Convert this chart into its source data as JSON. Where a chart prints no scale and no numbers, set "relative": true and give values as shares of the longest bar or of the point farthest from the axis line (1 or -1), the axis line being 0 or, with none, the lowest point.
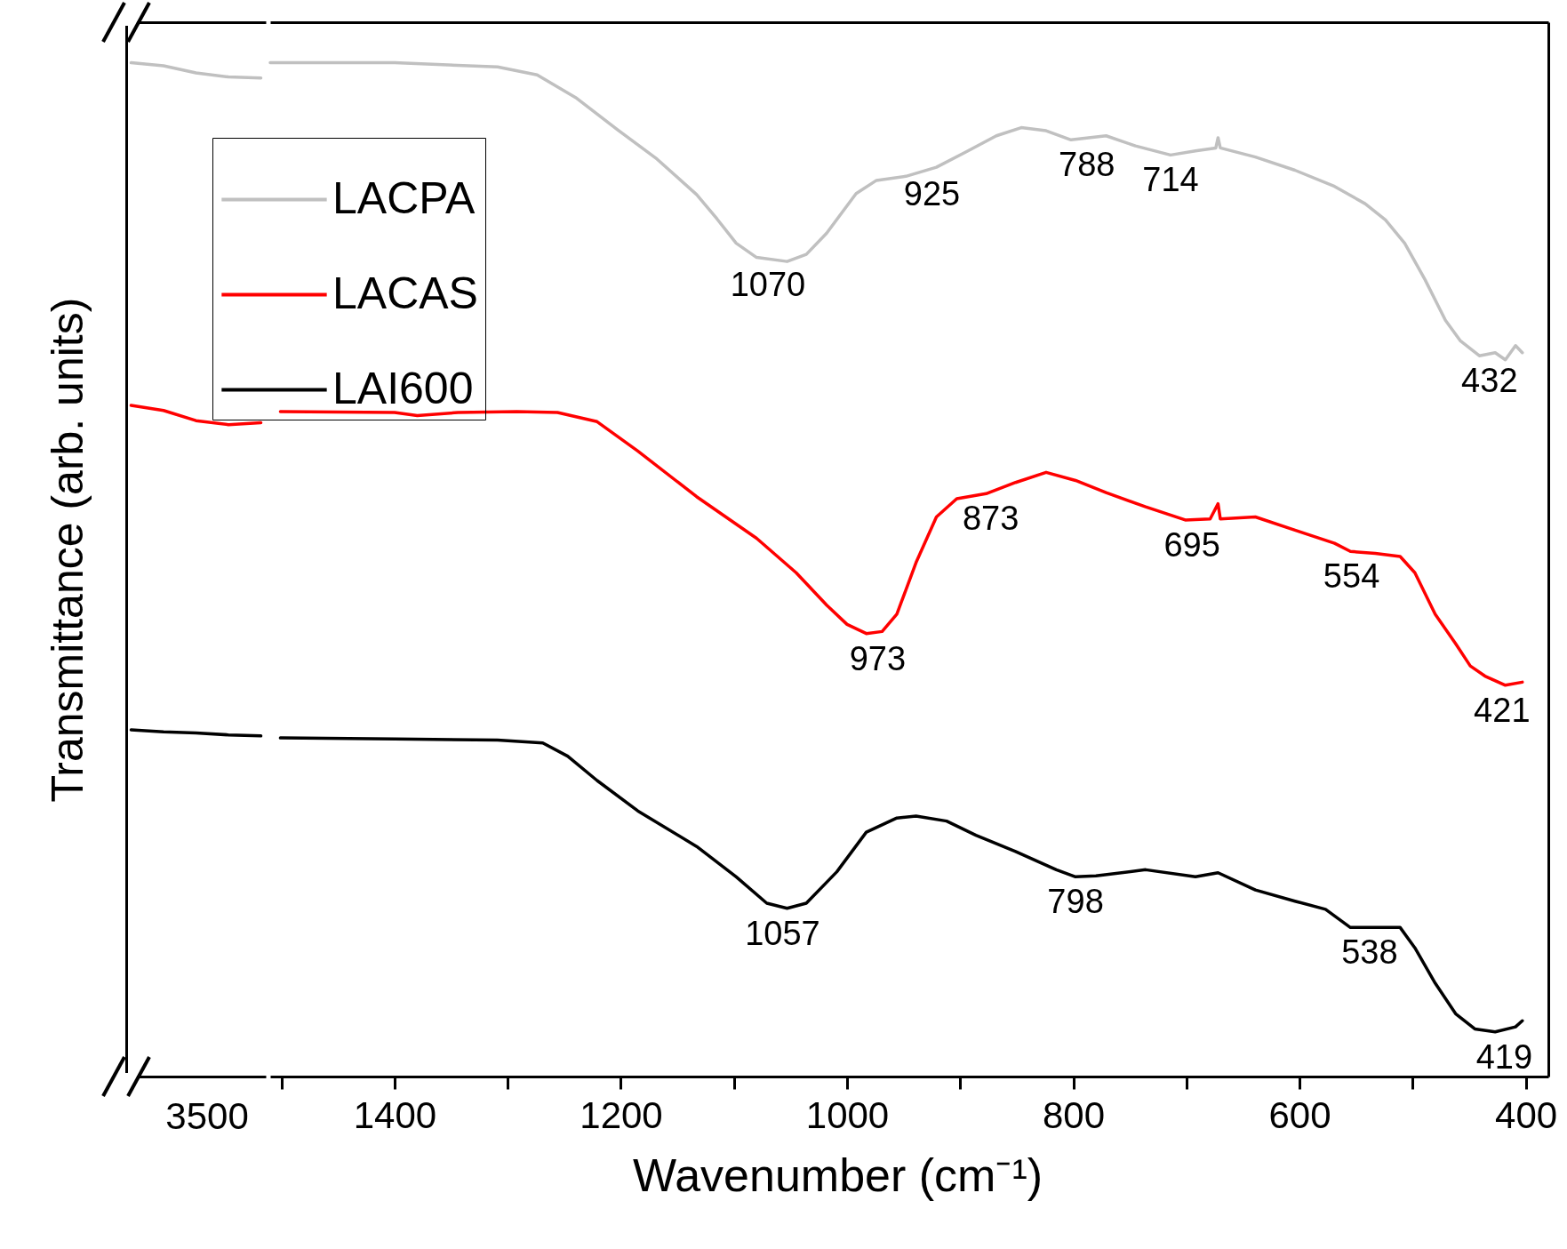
{
  "chart_data": [
    {
      "type": "line",
      "relative": true,
      "ylabel": "Transmittance (arb. units)",
      "categories": [
        null,
        null,
        null,
        null,
        null
      ],
      "annotations": [
        "3500"
      ],
      "series": [
        {
          "color": "#c0c0c0",
          "values": [
            1.0,
            0.997,
            0.99,
            0.986,
            0.985
          ]
        },
        {
          "color": "#ff0000",
          "values": [
            0.662,
            0.657,
            0.647,
            0.643,
            0.645
          ]
        },
        {
          "color": "#000000",
          "values": [
            0.342,
            0.34,
            0.339,
            0.337,
            0.336
          ]
        }
      ]
    },
    {
      "type": "line",
      "relative": true,
      "xlabel": "Wavenumber (cm⁻¹)",
      "xlim": [
        1510,
        380
      ],
      "legend": "top left",
      "xticks": [
        {
          "value": 1500,
          "label": null
        },
        1400,
        {
          "value": 1300,
          "label": null
        },
        1200,
        {
          "value": 1100,
          "label": null
        },
        1000,
        {
          "value": 900,
          "label": null
        },
        800,
        {
          "value": 700,
          "label": null
        },
        600,
        {
          "value": 500,
          "label": null
        },
        400
      ],
      "series": [
        {
          "name": "LACPA",
          "color": "#c0c0c0",
          "x": [
            1510,
            1400,
            1309,
            1274,
            1239,
            1203,
            1168,
            1133,
            1115,
            1098,
            1080,
            1053,
            1036,
            1018,
            992,
            974,
            948,
            921,
            895,
            868,
            846,
            824,
            802,
            771,
            745,
            714,
            692,
            674,
            672,
            670,
            639,
            604,
            569,
            542,
            524,
            507,
            489,
            471,
            458,
            441,
            427,
            418,
            409,
            403
          ],
          "values": [
            1.0,
            1.0,
            0.996,
            0.988,
            0.965,
            0.934,
            0.905,
            0.87,
            0.846,
            0.822,
            0.808,
            0.804,
            0.811,
            0.832,
            0.871,
            0.884,
            0.888,
            0.897,
            0.912,
            0.928,
            0.936,
            0.933,
            0.924,
            0.928,
            0.918,
            0.909,
            0.913,
            0.916,
            0.926,
            0.916,
            0.907,
            0.894,
            0.878,
            0.861,
            0.845,
            0.822,
            0.786,
            0.746,
            0.726,
            0.711,
            0.714,
            0.707,
            0.721,
            0.714
          ]
        },
        {
          "name": "LACAS",
          "color": "#ff0000",
          "x": [
            1501,
            1400,
            1380,
            1344,
            1292,
            1256,
            1221,
            1185,
            1133,
            1080,
            1045,
            1018,
            1000,
            983,
            969,
            956,
            939,
            921,
            903,
            877,
            851,
            824,
            798,
            771,
            736,
            701,
            679,
            672,
            670,
            639,
            604,
            569,
            555,
            533,
            511,
            498,
            480,
            462,
            449,
            436,
            418,
            403
          ],
          "values": [
            0.656,
            0.655,
            0.652,
            0.655,
            0.656,
            0.655,
            0.646,
            0.617,
            0.572,
            0.531,
            0.497,
            0.465,
            0.446,
            0.437,
            0.439,
            0.456,
            0.507,
            0.552,
            0.57,
            0.575,
            0.586,
            0.596,
            0.588,
            0.576,
            0.562,
            0.549,
            0.55,
            0.565,
            0.55,
            0.552,
            0.539,
            0.526,
            0.518,
            0.516,
            0.513,
            0.497,
            0.456,
            0.427,
            0.405,
            0.395,
            0.386,
            0.389
          ]
        },
        {
          "name": "LAI600",
          "color": "#000000",
          "x": [
            1501,
            1400,
            1309,
            1269,
            1247,
            1221,
            1185,
            1133,
            1098,
            1071,
            1053,
            1036,
            1009,
            983,
            956,
            939,
            912,
            886,
            851,
            815,
            798,
            780,
            736,
            692,
            672,
            639,
            604,
            577,
            555,
            533,
            511,
            498,
            480,
            462,
            445,
            427,
            409,
            403
          ],
          "values": [
            0.334,
            0.333,
            0.332,
            0.329,
            0.316,
            0.292,
            0.262,
            0.227,
            0.197,
            0.171,
            0.166,
            0.171,
            0.202,
            0.241,
            0.255,
            0.257,
            0.252,
            0.238,
            0.222,
            0.204,
            0.197,
            0.198,
            0.204,
            0.197,
            0.201,
            0.184,
            0.173,
            0.165,
            0.147,
            0.147,
            0.147,
            0.127,
            0.092,
            0.062,
            0.047,
            0.044,
            0.049,
            0.055
          ]
        }
      ],
      "annotations": [
        {
          "text": "1070",
          "x": 1070,
          "y": 0.806
        },
        {
          "text": "925",
          "x": 925,
          "y": 0.895
        },
        {
          "text": "788",
          "x": 788,
          "y": 0.924
        },
        {
          "text": "714",
          "x": 714,
          "y": 0.909
        },
        {
          "text": "432",
          "x": 432,
          "y": 0.711
        },
        {
          "text": "973",
          "x": 973,
          "y": 0.437
        },
        {
          "text": "873",
          "x": 873,
          "y": 0.575
        },
        {
          "text": "695",
          "x": 695,
          "y": 0.549
        },
        {
          "text": "554",
          "x": 554,
          "y": 0.518
        },
        {
          "text": "421",
          "x": 421,
          "y": 0.386
        },
        {
          "text": "1057",
          "x": 1057,
          "y": 0.166
        },
        {
          "text": "798",
          "x": 798,
          "y": 0.197
        },
        {
          "text": "538",
          "x": 538,
          "y": 0.147
        },
        {
          "text": "419",
          "x": 419,
          "y": 0.044
        }
      ]
    }
  ]
}
